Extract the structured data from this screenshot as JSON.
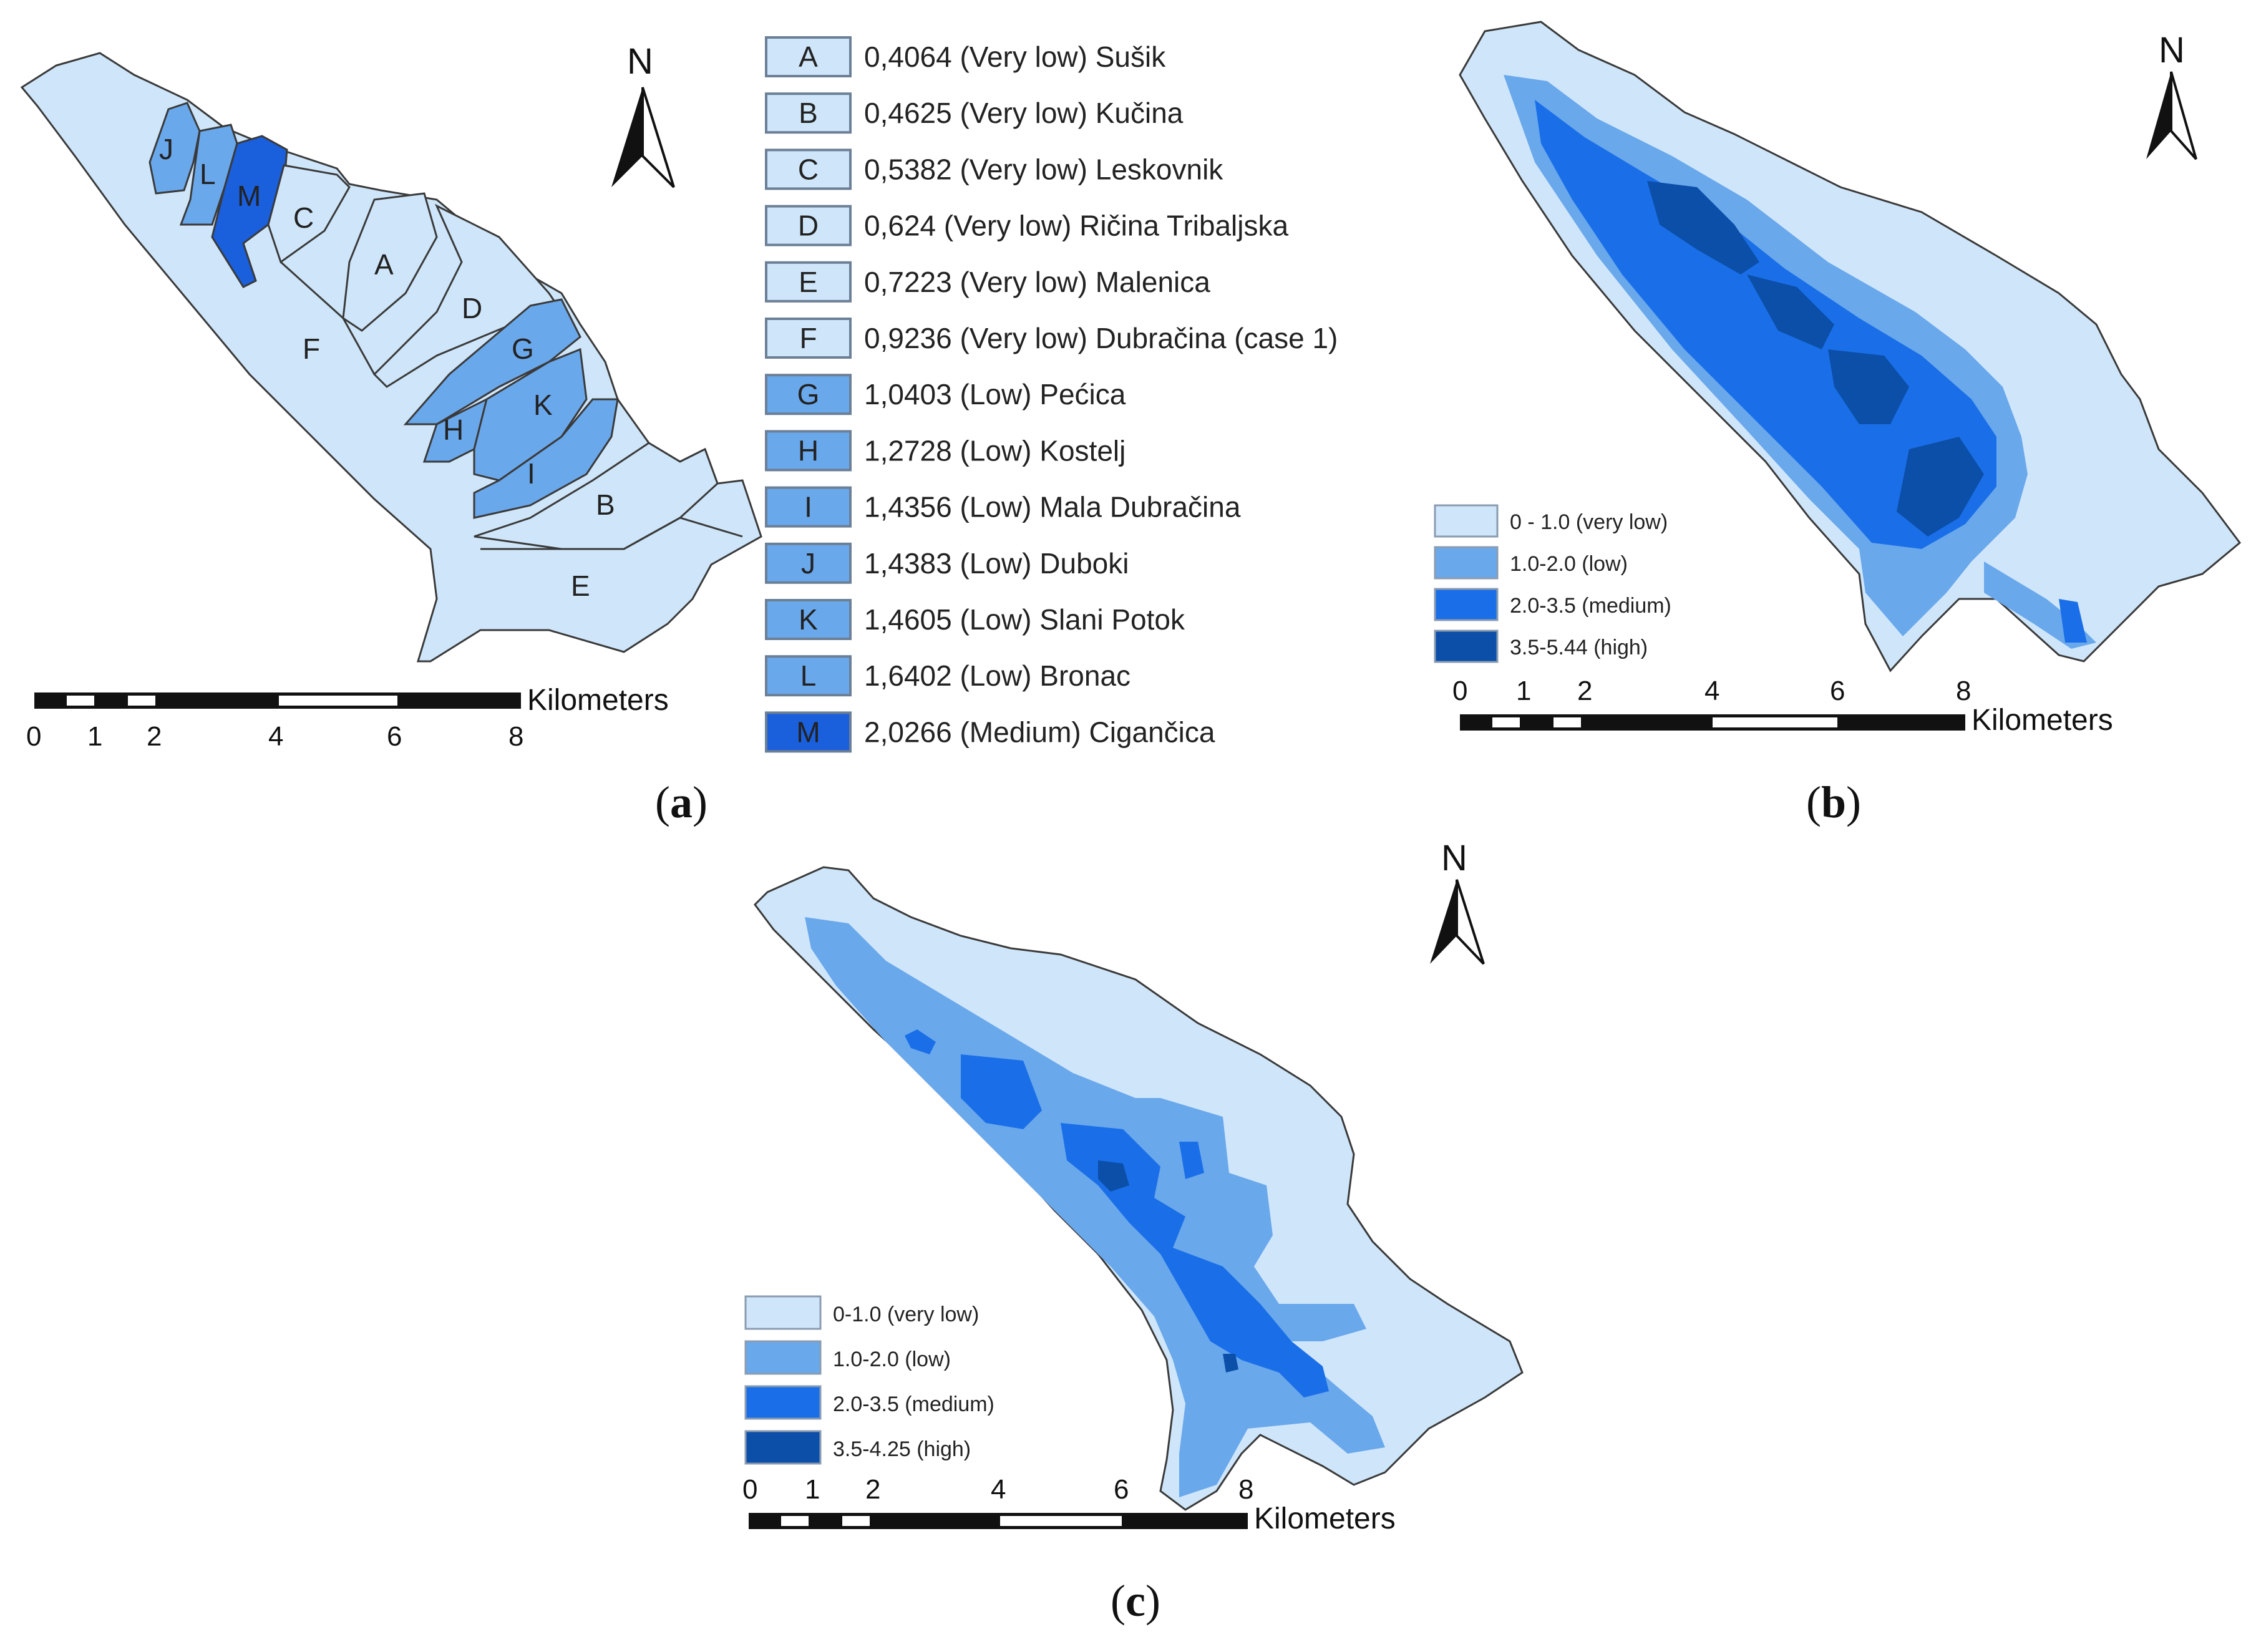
{
  "panel_a": {
    "caption": "a",
    "north": "N",
    "scale": {
      "unit": "Kilometers",
      "ticks": [
        "0",
        "1",
        "2",
        "4",
        "6",
        "8"
      ]
    },
    "region_labels": [
      "A",
      "B",
      "C",
      "D",
      "E",
      "F",
      "G",
      "H",
      "I",
      "J",
      "K",
      "L",
      "M"
    ],
    "legend": [
      {
        "code": "A",
        "text": "0,4064 (Very low) Sušik",
        "color": "#cfe6fa"
      },
      {
        "code": "B",
        "text": "0,4625 (Very low) Kučina",
        "color": "#cfe6fa"
      },
      {
        "code": "C",
        "text": "0,5382 (Very low) Leskovnik",
        "color": "#cfe6fa"
      },
      {
        "code": "D",
        "text": "0,624 (Very low) Ričina Tribaljska",
        "color": "#cfe6fa"
      },
      {
        "code": "E",
        "text": "0,7223 (Very low) Malenica",
        "color": "#cfe6fa"
      },
      {
        "code": "F",
        "text": "0,9236 (Very low) Dubračina (case 1)",
        "color": "#cfe6fa"
      },
      {
        "code": "G",
        "text": "1,0403 (Low)  Pećica",
        "color": "#6aa8ec"
      },
      {
        "code": "H",
        "text": "1,2728 (Low)  Kostelj",
        "color": "#6aa8ec"
      },
      {
        "code": "I",
        "text": "1,4356 (Low) Mala Dubračina",
        "color": "#6aa8ec"
      },
      {
        "code": "J",
        "text": "1,4383 (Low) Duboki",
        "color": "#6aa8ec"
      },
      {
        "code": "K",
        "text": "1,4605 (Low) Slani Potok",
        "color": "#6aa8ec"
      },
      {
        "code": "L",
        "text": "1,6402 (Low) Bronac",
        "color": "#6aa8ec"
      },
      {
        "code": "M",
        "text": "2,0266 (Medium) Cigančica",
        "color": "#1a5fdc"
      }
    ]
  },
  "panel_b": {
    "caption": "b",
    "north": "N",
    "scale": {
      "unit": "Kilometers",
      "ticks": [
        "0",
        "1",
        "2",
        "4",
        "6",
        "8"
      ]
    },
    "legend": [
      {
        "text": "0 - 1.0 (very low)",
        "color": "#cfe6fa"
      },
      {
        "text": "1.0-2.0 (low)",
        "color": "#6aa8ec"
      },
      {
        "text": "2.0-3.5 (medium)",
        "color": "#1a6fe8"
      },
      {
        "text": "3.5-5.44 (high)",
        "color": "#0b4fa8"
      }
    ]
  },
  "panel_c": {
    "caption": "c",
    "north": "N",
    "scale": {
      "unit": "Kilometers",
      "ticks": [
        "0",
        "1",
        "2",
        "4",
        "6",
        "8"
      ]
    },
    "legend": [
      {
        "text": "0-1.0 (very low)",
        "color": "#cfe6fa"
      },
      {
        "text": "1.0-2.0 (low)",
        "color": "#6aa8ec"
      },
      {
        "text": "2.0-3.5 (medium)",
        "color": "#1a6fe8"
      },
      {
        "text": "3.5-4.25 (high)",
        "color": "#0b4fa8"
      }
    ]
  },
  "colors": {
    "very_low": "#cfe6fa",
    "low": "#6aa8ec",
    "medium": "#1a6fe8",
    "high": "#0b4fa8",
    "outline": "#3a3a3a"
  }
}
